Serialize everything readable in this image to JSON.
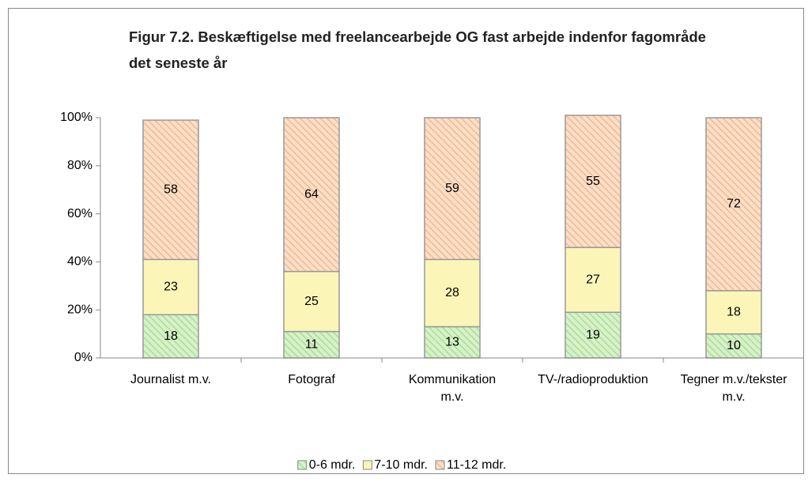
{
  "chart_data": {
    "type": "stacked_bar",
    "title": "Figur 7.2. Beskæftigelse med freelancearbejde OG fast arbejde indenfor fagområde det seneste år",
    "categories": [
      "Journalist m.v.",
      "Fotograf",
      "Kommunikation m.v.",
      "TV-/radioproduktion",
      "Tegner m.v./tekster m.v."
    ],
    "series": [
      {
        "name": "0-6 mdr.",
        "color": "#a8df8e",
        "values": [
          18,
          11,
          13,
          19,
          10
        ]
      },
      {
        "name": "7-10 mdr.",
        "color": "#fbf6b8",
        "values": [
          23,
          25,
          28,
          27,
          18
        ]
      },
      {
        "name": "11-12 mdr.",
        "color": "#f4b98a",
        "values": [
          58,
          64,
          59,
          55,
          72
        ]
      }
    ],
    "ylim": [
      0,
      100
    ],
    "yticks": [
      {
        "value": 0,
        "label": "0%"
      },
      {
        "value": 20,
        "label": "20%"
      },
      {
        "value": 40,
        "label": "40%"
      },
      {
        "value": 60,
        "label": "60%"
      },
      {
        "value": 80,
        "label": "80%"
      },
      {
        "value": 100,
        "label": "100%"
      }
    ],
    "legend": "bottom"
  }
}
